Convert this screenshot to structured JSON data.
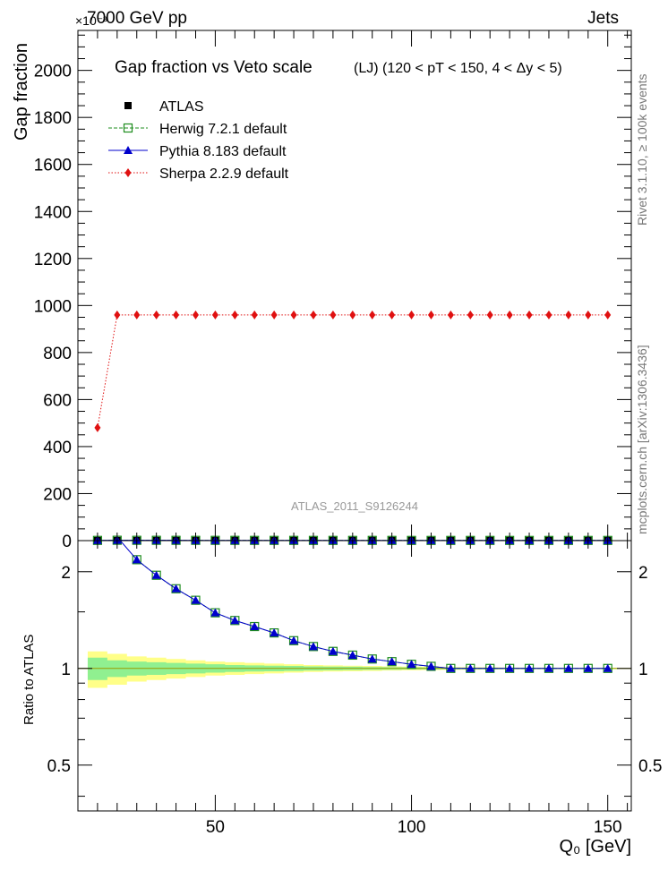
{
  "header": {
    "energy_label": "7000 GeV pp",
    "category_label": "Jets",
    "exponent_label": "×10⁻³"
  },
  "side_labels": {
    "rivet": "Rivet 3.1.10, ≥ 100k events",
    "mcplots": "mcplots.cern.ch [arXiv:1306.3436]"
  },
  "watermark": "ATLAS_2011_S9126244",
  "colors": {
    "atlas": "#000000",
    "herwig": "#1e8c1e",
    "pythia": "#0000cc",
    "sherpa": "#e01010",
    "band_inner": "#90f090",
    "band_outer": "#ffff88"
  },
  "chart_data": [
    {
      "type": "line",
      "title": "Gap fraction vs Veto scale",
      "subtitle": "(LJ) (120 < pT < 150, 4 < Δy < 5)",
      "ylabel": "Gap fraction",
      "xlim": [
        15,
        156
      ],
      "ylim": [
        0,
        2170
      ],
      "yticks": [
        0,
        200,
        400,
        600,
        800,
        1000,
        1200,
        1400,
        1600,
        1800,
        2000
      ],
      "x": [
        20,
        25,
        30,
        35,
        40,
        45,
        50,
        55,
        60,
        65,
        70,
        75,
        80,
        85,
        90,
        95,
        100,
        105,
        110,
        115,
        120,
        125,
        130,
        135,
        140,
        145,
        150
      ],
      "legend": [
        {
          "name": "ATLAS",
          "key": "atlas"
        },
        {
          "name": "Herwig 7.2.1 default",
          "key": "herwig"
        },
        {
          "name": "Pythia 8.183 default",
          "key": "pythia"
        },
        {
          "name": "Sherpa 2.2.9 default",
          "key": "sherpa"
        }
      ],
      "series": [
        {
          "key": "atlas",
          "values": [
            0.4,
            0.6,
            0.6,
            0.7,
            0.7,
            0.7,
            0.8,
            0.8,
            0.8,
            0.8,
            0.8,
            0.8,
            0.8,
            0.8,
            0.8,
            0.8,
            0.8,
            0.8,
            0.8,
            0.8,
            0.8,
            0.8,
            0.8,
            0.8,
            0.8,
            0.8,
            0.8
          ]
        },
        {
          "key": "herwig",
          "values": [
            0.9,
            1.5,
            1.3,
            1.3,
            1.2,
            1.1,
            1.1,
            1.1,
            1.0,
            1.0,
            1.0,
            0.9,
            0.9,
            0.9,
            0.9,
            0.9,
            0.8,
            0.8,
            0.8,
            0.8,
            0.8,
            0.8,
            0.8,
            0.8,
            0.8,
            0.8,
            0.8
          ]
        },
        {
          "key": "pythia",
          "values": [
            0.9,
            1.5,
            1.3,
            1.3,
            1.2,
            1.1,
            1.1,
            1.1,
            1.0,
            1.0,
            1.0,
            0.9,
            0.9,
            0.9,
            0.9,
            0.9,
            0.8,
            0.8,
            0.8,
            0.8,
            0.8,
            0.8,
            0.8,
            0.8,
            0.8,
            0.8,
            0.8
          ]
        },
        {
          "key": "sherpa",
          "values": [
            480,
            960,
            960,
            960,
            960,
            960,
            960,
            960,
            960,
            960,
            960,
            960,
            960,
            960,
            960,
            960,
            960,
            960,
            960,
            960,
            960,
            960,
            960,
            960,
            960,
            960,
            960
          ]
        }
      ]
    },
    {
      "type": "line",
      "ylabel": "Ratio to ATLAS",
      "xlabel": "Q₀ [GeV]",
      "xlim": [
        15,
        156
      ],
      "ylim": [
        0.36,
        2.5
      ],
      "yscale": "log",
      "yticks": [
        0.5,
        1,
        2
      ],
      "xticks": [
        50,
        100,
        150
      ],
      "x": [
        20,
        25,
        30,
        35,
        40,
        45,
        50,
        55,
        60,
        65,
        70,
        75,
        80,
        85,
        90,
        95,
        100,
        105,
        110,
        115,
        120,
        125,
        130,
        135,
        140,
        145,
        150
      ],
      "series": [
        {
          "key": "herwig",
          "values": [
            null,
            null,
            2.18,
            1.95,
            1.77,
            1.63,
            1.49,
            1.41,
            1.35,
            1.29,
            1.22,
            1.17,
            1.13,
            1.1,
            1.07,
            1.05,
            1.03,
            1.015,
            1.0,
            1.0,
            1.0,
            1.0,
            1.0,
            1.0,
            1.0,
            1.0,
            1.0
          ]
        },
        {
          "key": "pythia",
          "values": [
            null,
            null,
            2.18,
            1.95,
            1.77,
            1.63,
            1.49,
            1.41,
            1.35,
            1.29,
            1.22,
            1.17,
            1.13,
            1.1,
            1.07,
            1.05,
            1.03,
            1.015,
            1.0,
            1.0,
            1.0,
            1.0,
            1.0,
            1.0,
            1.0,
            1.0,
            1.0
          ]
        }
      ],
      "band_inner": [
        0.08,
        0.06,
        0.05,
        0.045,
        0.04,
        0.035,
        0.03,
        0.025,
        0.022,
        0.02,
        0.018,
        0.015,
        0.013,
        0.012,
        0.01,
        0.009,
        0.008,
        0.007,
        0.006,
        0.005,
        0.005,
        0.004,
        0.004,
        0.004,
        0.003,
        0.003,
        0.003
      ],
      "band_outer": [
        0.13,
        0.11,
        0.09,
        0.08,
        0.07,
        0.06,
        0.05,
        0.045,
        0.04,
        0.035,
        0.03,
        0.025,
        0.022,
        0.02,
        0.018,
        0.015,
        0.013,
        0.012,
        0.01,
        0.009,
        0.008,
        0.007,
        0.006,
        0.006,
        0.005,
        0.005,
        0.005
      ]
    }
  ]
}
